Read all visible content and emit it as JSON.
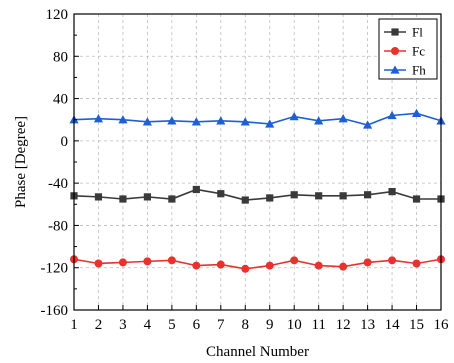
{
  "chart_data": {
    "type": "line",
    "xlabel": "Channel Number",
    "ylabel": "Phase [Degree]",
    "x": [
      1,
      2,
      3,
      4,
      5,
      6,
      7,
      8,
      9,
      10,
      11,
      12,
      13,
      14,
      15,
      16
    ],
    "xlim": [
      1,
      16
    ],
    "ylim": [
      -160,
      120
    ],
    "yticks": [
      -160,
      -120,
      -80,
      -40,
      0,
      40,
      80,
      120
    ],
    "grid": true,
    "legend": "top-right",
    "series": [
      {
        "name": "Fl",
        "color": "#3a3a3a",
        "marker": "square",
        "values": [
          -52,
          -53,
          -55,
          -53,
          -55,
          -46,
          -50,
          -56,
          -54,
          -51,
          -52,
          -52,
          -51,
          -48,
          -55,
          -55
        ]
      },
      {
        "name": "Fc",
        "color": "#e8322e",
        "marker": "circle",
        "values": [
          -112,
          -116,
          -115,
          -114,
          -113,
          -118,
          -117,
          -121,
          -118,
          -113,
          -118,
          -119,
          -115,
          -113,
          -116,
          -112
        ]
      },
      {
        "name": "Fh",
        "color": "#1f5fd6",
        "marker": "triangle",
        "values": [
          20,
          21,
          20,
          18,
          19,
          18,
          19,
          18,
          16,
          23,
          19,
          21,
          15,
          24,
          26,
          19
        ]
      }
    ]
  }
}
